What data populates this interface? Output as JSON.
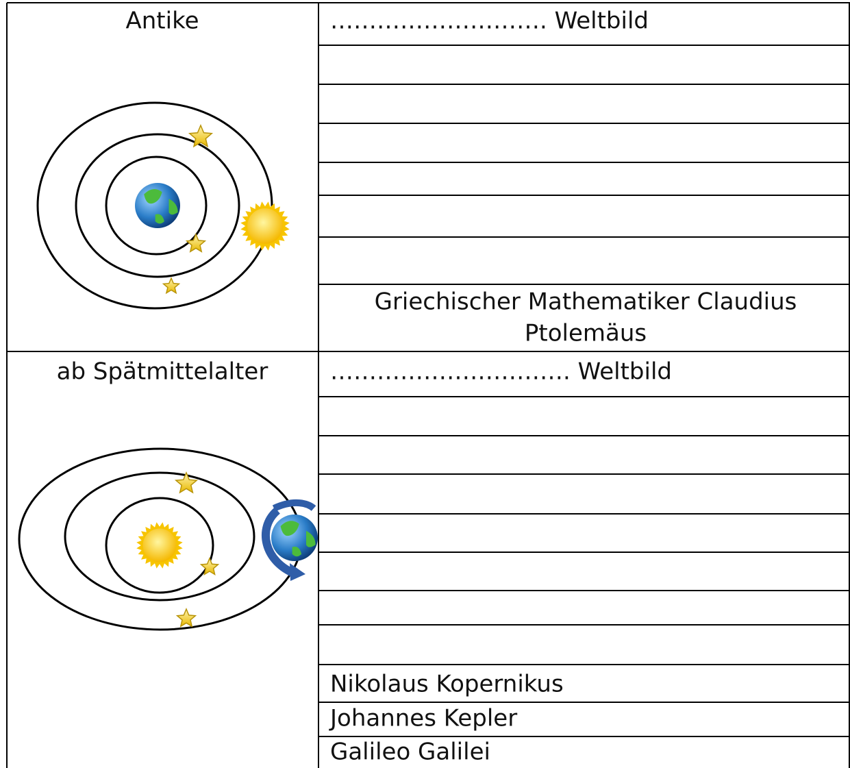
{
  "sections": [
    {
      "period": "Antike",
      "heading": "………………………. Weltbild",
      "note_lines": [
        "Griechischer Mathematiker Claudius",
        "Ptolemäus"
      ]
    },
    {
      "period": "ab Spätmittelalter",
      "heading": "…………………………. Weltbild",
      "names": [
        "Nikolaus Kopernikus",
        "Johannes Kepler",
        "Galileo Galilei"
      ]
    }
  ]
}
